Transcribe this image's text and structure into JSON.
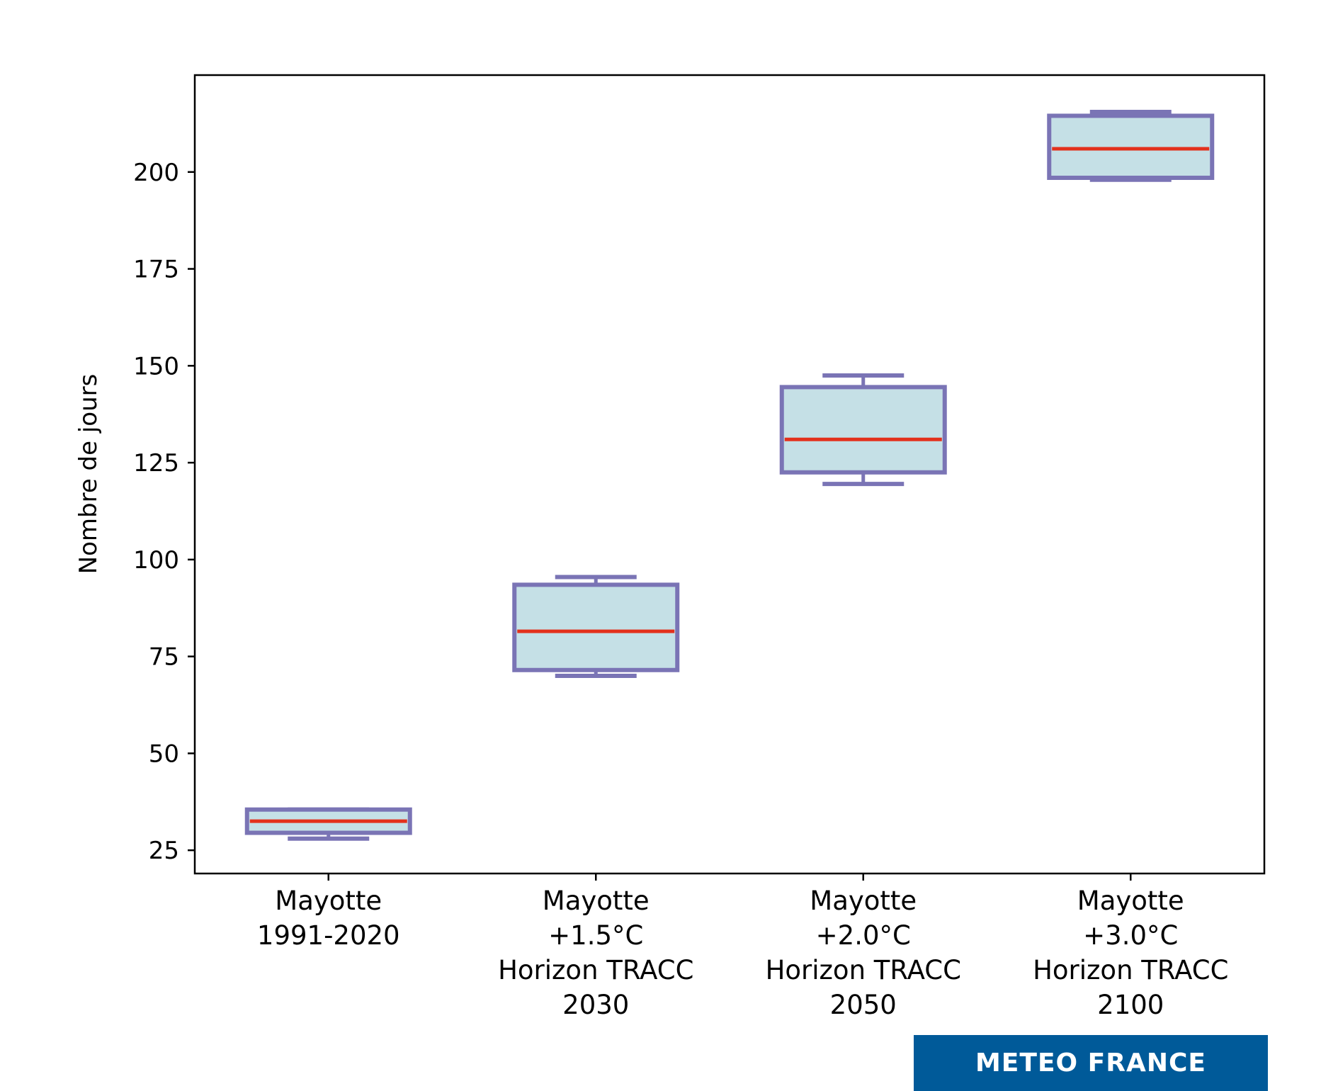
{
  "chart_data": {
    "type": "boxplot",
    "title": "",
    "xlabel": "",
    "ylabel": "Nombre de jours",
    "ylim": [
      19,
      225
    ],
    "yticks": [
      25,
      50,
      75,
      100,
      125,
      150,
      175,
      200
    ],
    "grid": false,
    "categories": [
      [
        "Mayotte",
        "1991-2020"
      ],
      [
        "Mayotte",
        "+1.5°C",
        "Horizon TRACC",
        "2030"
      ],
      [
        "Mayotte",
        "+2.0°C",
        "Horizon TRACC",
        "2050"
      ],
      [
        "Mayotte",
        "+3.0°C",
        "Horizon TRACC",
        "2100"
      ]
    ],
    "boxes": [
      {
        "whisker_low": 28,
        "q1": 29.5,
        "median": 32.5,
        "q3": 35.5,
        "whisker_high": 35.5
      },
      {
        "whisker_low": 70,
        "q1": 71.5,
        "median": 81.5,
        "q3": 93.5,
        "whisker_high": 95.5
      },
      {
        "whisker_low": 119.5,
        "q1": 122.5,
        "median": 131,
        "q3": 144.5,
        "whisker_high": 147.5
      },
      {
        "whisker_low": 198,
        "q1": 198.5,
        "median": 206,
        "q3": 214.5,
        "whisker_high": 215.5
      }
    ],
    "colors": {
      "box_fill": "#c5e0e6",
      "box_edge": "#7a74b5",
      "median": "#e3311c",
      "axis": "#000000"
    }
  },
  "logo": {
    "text": "METEO FRANCE",
    "color": "#005a99"
  }
}
